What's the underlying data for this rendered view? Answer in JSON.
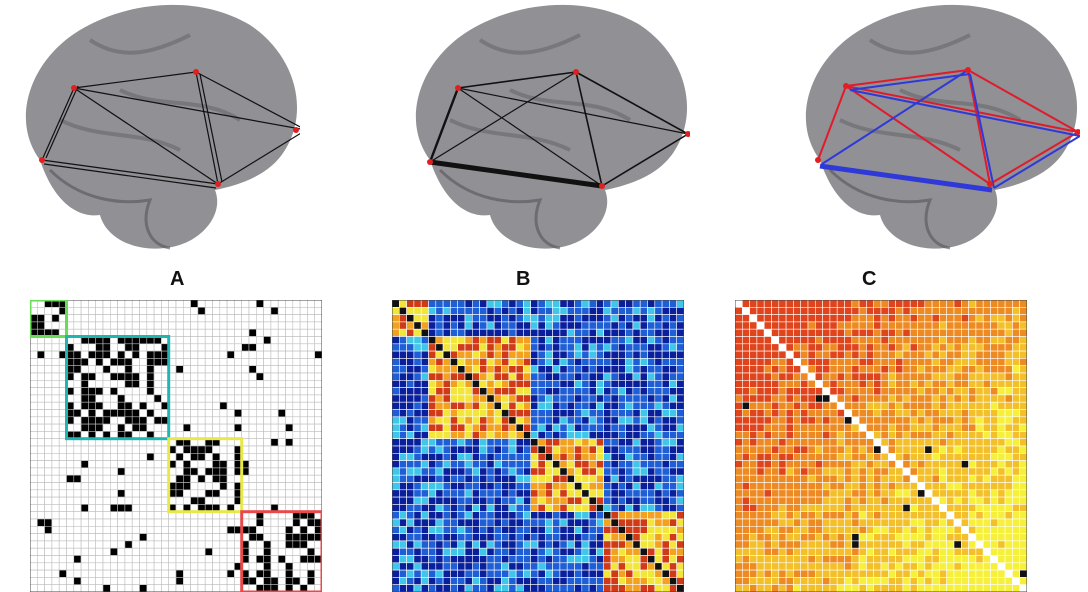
{
  "panels": [
    {
      "label": "A",
      "edge_style": "thin-black-bidirectional-arrows",
      "matrix_style": "binary-black-white-with-colored-module-boxes",
      "module_box_colors": [
        "#66dd55",
        "#1fb5b0",
        "#e8e84a",
        "#e84a4a"
      ]
    },
    {
      "label": "B",
      "edge_style": "black-weighted-arrows",
      "matrix_style": "jet-colormap"
    },
    {
      "label": "C",
      "edge_style": "red-and-blue-paired-arrows",
      "matrix_style": "hot-colormap-with-white-diagonal"
    }
  ],
  "colors": {
    "brain_fill": "#7d7d82",
    "brain_shadow": "#55555a",
    "node": "#e02020",
    "arrow_black": "#111111",
    "arrow_red": "#e01b2b",
    "arrow_blue": "#2f39d8"
  }
}
